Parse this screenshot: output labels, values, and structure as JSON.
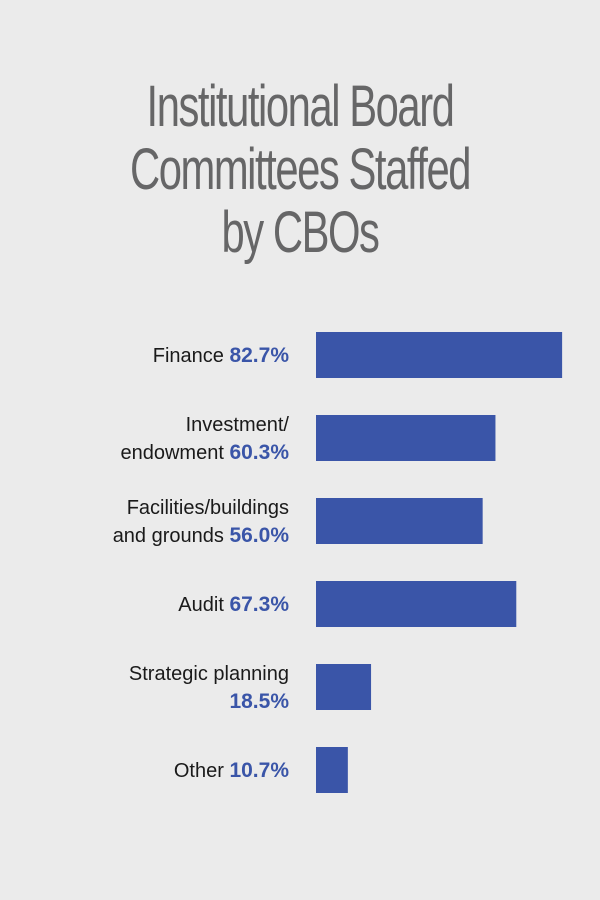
{
  "title": [
    "Institutional Board",
    "Committees Staffed",
    "by CBOs"
  ],
  "colors": {
    "background": "#ebebeb",
    "bar": "#3a55a8",
    "title": "#666667",
    "label": "#1a1a1a",
    "value": "#3a55a8"
  },
  "chart_data": {
    "type": "bar",
    "orientation": "horizontal",
    "title": "Institutional Board Committees Staffed by CBOs",
    "categories": [
      "Finance",
      "Investment/ endowment",
      "Facilities/buildings and grounds",
      "Audit",
      "Strategic planning",
      "Other"
    ],
    "values": [
      82.7,
      60.3,
      56.0,
      67.3,
      18.5,
      10.7
    ],
    "value_labels": [
      "82.7%",
      "60.3%",
      "56.0%",
      "67.3%",
      "18.5%",
      "10.7%"
    ],
    "label_lines": [
      [
        [
          "Finance",
          "82.7%"
        ]
      ],
      [
        [
          "Investment/",
          ""
        ],
        [
          "endowment",
          "60.3%"
        ]
      ],
      [
        [
          "Facilities/buildings",
          ""
        ],
        [
          "and grounds",
          "56.0%"
        ]
      ],
      [
        [
          "Audit",
          "67.3%"
        ]
      ],
      [
        [
          "Strategic planning",
          ""
        ],
        [
          "",
          "18.5%"
        ]
      ],
      [
        [
          "Other",
          "10.7%"
        ]
      ]
    ],
    "xlim": [
      0,
      100
    ],
    "grid": false,
    "legend": "none",
    "xlabel": "",
    "ylabel": ""
  }
}
